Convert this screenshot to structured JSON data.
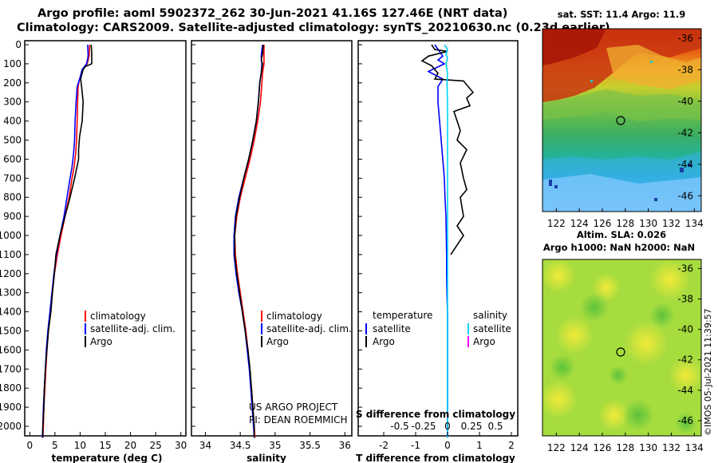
{
  "title": {
    "line1": "Argo profile: aoml 5902372_262 30-Jun-2021 41.16S 127.46E (NRT data)",
    "line2": "Climatology: CARS2009. Satellite-adjusted climatology: synTS_20210630.nc (0.23d earlier)"
  },
  "colors": {
    "climatology": "#ff0000",
    "satellite": "#0000ff",
    "argo": "#000000",
    "sat_sal": "#00d5ff",
    "argo_sal": "#ff00ff"
  },
  "chart_data": [
    {
      "type": "line",
      "name": "temperature-profile",
      "xlabel": "temperature (deg C)",
      "xlim": [
        -1,
        31
      ],
      "xticks": [
        "0",
        "5",
        "10",
        "15",
        "20",
        "25",
        "30"
      ],
      "ylim": [
        0,
        2080
      ],
      "yticks": [
        "0",
        "100",
        "200",
        "300",
        "400",
        "500",
        "600",
        "700",
        "800",
        "900",
        "1000",
        "1100",
        "1200",
        "1300",
        "1400",
        "1500",
        "1600",
        "1700",
        "1800",
        "1900",
        "2000"
      ],
      "legend": [
        "climatology",
        "satellite-adj. clim.",
        "Argo"
      ],
      "series": [
        {
          "name": "climatology",
          "color": "red",
          "points": [
            [
              11.9,
              0
            ],
            [
              11.8,
              60
            ],
            [
              11.4,
              100
            ],
            [
              10.5,
              130
            ],
            [
              9.9,
              180
            ],
            [
              9.6,
              220
            ],
            [
              9.5,
              300
            ],
            [
              9.4,
              400
            ],
            [
              9.3,
              500
            ],
            [
              9.1,
              570
            ],
            [
              8.8,
              640
            ],
            [
              8.4,
              700
            ],
            [
              7.8,
              800
            ],
            [
              7.0,
              900
            ],
            [
              6.2,
              1000
            ],
            [
              5.5,
              1100
            ],
            [
              4.9,
              1200
            ],
            [
              4.5,
              1300
            ],
            [
              4.1,
              1400
            ],
            [
              3.7,
              1500
            ],
            [
              3.4,
              1600
            ],
            [
              3.2,
              1700
            ],
            [
              3.0,
              1800
            ],
            [
              2.8,
              1900
            ],
            [
              2.7,
              2000
            ],
            [
              2.6,
              2060
            ]
          ]
        },
        {
          "name": "satellite-adj. clim.",
          "color": "blue",
          "points": [
            [
              11.5,
              0
            ],
            [
              11.6,
              60
            ],
            [
              11.3,
              100
            ],
            [
              10.4,
              130
            ],
            [
              9.9,
              180
            ],
            [
              9.4,
              220
            ],
            [
              9.2,
              300
            ],
            [
              9.0,
              400
            ],
            [
              8.9,
              500
            ],
            [
              8.7,
              570
            ],
            [
              8.4,
              640
            ],
            [
              8.0,
              700
            ],
            [
              7.4,
              800
            ],
            [
              6.8,
              900
            ],
            [
              6.0,
              1000
            ],
            [
              5.3,
              1100
            ],
            [
              4.8,
              1200
            ],
            [
              4.4,
              1300
            ],
            [
              4.0,
              1400
            ],
            [
              3.6,
              1500
            ],
            [
              3.3,
              1600
            ],
            [
              3.1,
              1700
            ],
            [
              2.9,
              1800
            ],
            [
              2.7,
              1900
            ],
            [
              2.6,
              2000
            ],
            [
              2.5,
              2060
            ]
          ]
        },
        {
          "name": "Argo",
          "color": "black",
          "points": [
            [
              12.2,
              0
            ],
            [
              12.3,
              50
            ],
            [
              12.3,
              100
            ],
            [
              11.0,
              115
            ],
            [
              10.6,
              130
            ],
            [
              10.1,
              180
            ],
            [
              10.3,
              220
            ],
            [
              10.6,
              300
            ],
            [
              10.4,
              400
            ],
            [
              9.9,
              480
            ],
            [
              9.7,
              550
            ],
            [
              9.7,
              600
            ],
            [
              8.9,
              700
            ],
            [
              8.0,
              800
            ],
            [
              7.0,
              900
            ],
            [
              6.0,
              1000
            ],
            [
              5.2,
              1100
            ],
            [
              4.9,
              1200
            ],
            [
              4.5,
              1300
            ],
            [
              4.2,
              1400
            ],
            [
              3.7,
              1500
            ],
            [
              3.4,
              1600
            ],
            [
              3.1,
              1700
            ],
            [
              2.9,
              1800
            ],
            [
              2.8,
              1900
            ],
            [
              2.6,
              2000
            ],
            [
              2.6,
              2060
            ]
          ]
        }
      ]
    },
    {
      "type": "line",
      "name": "salinity-profile",
      "xlabel": "salinity",
      "xlim": [
        33.8,
        36.1
      ],
      "xticks": [
        "34",
        "34.5",
        "35",
        "35.5",
        "36"
      ],
      "ylim": [
        0,
        2080
      ],
      "legend": [
        "climatology",
        "satellite-adj. clim.",
        "Argo"
      ],
      "note_line1": "US ARGO PROJECT",
      "note_line2": "PI: DEAN ROEMMICH",
      "series": [
        {
          "name": "climatology",
          "color": "red",
          "points": [
            [
              34.84,
              0
            ],
            [
              34.84,
              60
            ],
            [
              34.84,
              100
            ],
            [
              34.82,
              150
            ],
            [
              34.81,
              200
            ],
            [
              34.79,
              300
            ],
            [
              34.75,
              400
            ],
            [
              34.7,
              500
            ],
            [
              34.64,
              600
            ],
            [
              34.57,
              700
            ],
            [
              34.5,
              800
            ],
            [
              34.45,
              900
            ],
            [
              34.42,
              1000
            ],
            [
              34.43,
              1100
            ],
            [
              34.46,
              1200
            ],
            [
              34.5,
              1300
            ],
            [
              34.54,
              1400
            ],
            [
              34.58,
              1500
            ],
            [
              34.61,
              1600
            ],
            [
              34.63,
              1700
            ],
            [
              34.66,
              1800
            ],
            [
              34.68,
              1900
            ],
            [
              34.7,
              2000
            ],
            [
              34.71,
              2060
            ]
          ]
        },
        {
          "name": "satellite-adj. clim.",
          "color": "blue",
          "points": [
            [
              34.82,
              0
            ],
            [
              34.8,
              60
            ],
            [
              34.81,
              100
            ],
            [
              34.8,
              150
            ],
            [
              34.78,
              200
            ],
            [
              34.76,
              300
            ],
            [
              34.73,
              400
            ],
            [
              34.68,
              500
            ],
            [
              34.62,
              600
            ],
            [
              34.55,
              700
            ],
            [
              34.48,
              800
            ],
            [
              34.43,
              900
            ],
            [
              34.41,
              1000
            ],
            [
              34.41,
              1100
            ],
            [
              34.44,
              1200
            ],
            [
              34.48,
              1300
            ],
            [
              34.53,
              1400
            ],
            [
              34.57,
              1500
            ],
            [
              34.6,
              1600
            ],
            [
              34.63,
              1700
            ],
            [
              34.65,
              1800
            ],
            [
              34.67,
              1900
            ],
            [
              34.69,
              2000
            ],
            [
              34.7,
              2060
            ]
          ]
        },
        {
          "name": "Argo",
          "color": "black",
          "points": [
            [
              34.83,
              0
            ],
            [
              34.82,
              50
            ],
            [
              34.8,
              80
            ],
            [
              34.82,
              100
            ],
            [
              34.8,
              150
            ],
            [
              34.78,
              200
            ],
            [
              34.76,
              300
            ],
            [
              34.73,
              400
            ],
            [
              34.68,
              500
            ],
            [
              34.62,
              600
            ],
            [
              34.55,
              700
            ],
            [
              34.49,
              800
            ],
            [
              34.44,
              900
            ],
            [
              34.42,
              1000
            ],
            [
              34.42,
              1100
            ],
            [
              34.45,
              1200
            ],
            [
              34.49,
              1300
            ],
            [
              34.53,
              1400
            ],
            [
              34.57,
              1500
            ],
            [
              34.61,
              1600
            ],
            [
              34.64,
              1700
            ],
            [
              34.66,
              1800
            ],
            [
              34.68,
              1900
            ],
            [
              34.7,
              2000
            ],
            [
              34.7,
              2060
            ]
          ]
        }
      ]
    },
    {
      "type": "line",
      "name": "difference-profile",
      "xlabel": "T difference from climatology",
      "xlim": [
        -2.8,
        2.2
      ],
      "xticks": [
        "-2",
        "-1",
        "0",
        "1",
        "2"
      ],
      "xlabel_top": "S difference from climatology",
      "xticks_top": [
        "-0.5",
        "-0.25",
        "0",
        "0.25",
        "0.5"
      ],
      "ylim": [
        0,
        2080
      ],
      "legend_temperature_header": "temperature",
      "legend_salinity_header": "salinity",
      "legend_temperature": [
        "satellite",
        "Argo"
      ],
      "legend_salinity": [
        "satellite",
        "Argo"
      ],
      "series": [
        {
          "name": "T satellite",
          "color": "blue",
          "points": [
            [
              -0.4,
              0
            ],
            [
              -0.15,
              60
            ],
            [
              -0.3,
              80
            ],
            [
              -0.1,
              100
            ],
            [
              -0.6,
              140
            ],
            [
              -0.15,
              180
            ],
            [
              -0.3,
              220
            ],
            [
              -0.3,
              300
            ],
            [
              -0.25,
              400
            ],
            [
              -0.2,
              500
            ],
            [
              -0.15,
              600
            ],
            [
              -0.1,
              700
            ],
            [
              -0.08,
              800
            ],
            [
              -0.05,
              900
            ],
            [
              -0.04,
              1000
            ],
            [
              -0.03,
              1100
            ],
            [
              -0.03,
              1200
            ],
            [
              -0.02,
              1300
            ],
            [
              0.0,
              1400
            ],
            [
              0.0,
              1500
            ],
            [
              0.0,
              1600
            ],
            [
              0.0,
              1700
            ],
            [
              0.0,
              1800
            ],
            [
              0.0,
              1900
            ],
            [
              0.0,
              2000
            ],
            [
              0.0,
              2060
            ]
          ]
        },
        {
          "name": "T Argo",
          "color": "black",
          "points": [
            [
              -0.5,
              0
            ],
            [
              -0.4,
              25
            ],
            [
              0.0,
              35
            ],
            [
              -0.6,
              60
            ],
            [
              -0.8,
              85
            ],
            [
              -0.5,
              110
            ],
            [
              -0.3,
              150
            ],
            [
              -0.4,
              180
            ],
            [
              0.5,
              190
            ],
            [
              0.6,
              210
            ],
            [
              0.8,
              250
            ],
            [
              0.6,
              280
            ],
            [
              0.7,
              320
            ],
            [
              0.2,
              350
            ],
            [
              0.3,
              400
            ],
            [
              0.4,
              450
            ],
            [
              0.3,
              500
            ],
            [
              0.6,
              550
            ],
            [
              0.4,
              620
            ],
            [
              0.5,
              700
            ],
            [
              0.6,
              760
            ],
            [
              0.4,
              800
            ],
            [
              0.5,
              900
            ],
            [
              0.3,
              950
            ],
            [
              0.5,
              1000
            ],
            [
              0.3,
              1050
            ],
            [
              0.1,
              1100
            ]
          ]
        },
        {
          "name": "S satellite",
          "color": "cyan",
          "points": [
            [
              -0.1,
              0
            ],
            [
              0.0,
              25
            ],
            [
              -0.05,
              50
            ],
            [
              0.0,
              70
            ],
            [
              -0.05,
              100
            ],
            [
              0.0,
              150
            ],
            [
              -0.02,
              200
            ],
            [
              0.0,
              300
            ],
            [
              0.0,
              400
            ],
            [
              0.0,
              500
            ],
            [
              0.0,
              700
            ],
            [
              0.0,
              1000
            ],
            [
              0.0,
              1500
            ],
            [
              0.0,
              2000
            ],
            [
              0.0,
              2060
            ]
          ]
        },
        {
          "name": "S Argo",
          "color": "magenta",
          "points": []
        }
      ]
    },
    {
      "type": "heatmap",
      "name": "sst-map",
      "title": "sat. SST: 11.4 Argo: 11.9",
      "xticks": [
        "122",
        "124",
        "126",
        "128",
        "130",
        "132",
        "134"
      ],
      "yticks": [
        "-36",
        "-38",
        "-40",
        "-42",
        "-44",
        "-46"
      ],
      "marker": {
        "lon": 127.46,
        "lat": -41.16
      }
    },
    {
      "type": "heatmap",
      "name": "sla-map",
      "title_line1": "Altim. SLA: 0.026",
      "title_line2": "Argo h1000: NaN h2000: NaN",
      "xticks": [
        "122",
        "124",
        "126",
        "128",
        "130",
        "132",
        "134"
      ],
      "yticks": [
        "-36",
        "-38",
        "-40",
        "-42",
        "-44",
        "-46"
      ],
      "marker": {
        "lon": 127.46,
        "lat": -41.16
      }
    }
  ],
  "stamp": "©IMOS 05-Jul-2021 11:39:57"
}
